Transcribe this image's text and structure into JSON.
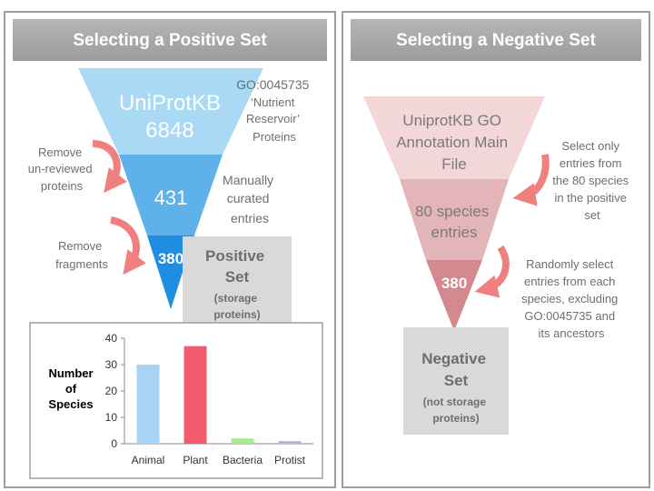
{
  "left_panel": {
    "header": "Selecting a Positive Set",
    "funnel": {
      "level1": [
        "UniProtKB",
        "6848"
      ],
      "level2": "431",
      "level3": "380"
    },
    "annotations": {
      "go_term": [
        "GO:0045735",
        "‘Nutrient",
        "Reservoir’",
        "Proteins"
      ],
      "manual": [
        "Manually",
        "curated",
        "entries"
      ],
      "remove_unreviewed": [
        "Remove",
        "un-reviewed",
        "proteins"
      ],
      "remove_fragments": [
        "Remove",
        "fragments"
      ]
    },
    "set_box": {
      "title": [
        "Positive",
        "Set"
      ],
      "subtitle": [
        "(storage",
        "proteins)"
      ]
    }
  },
  "right_panel": {
    "header": "Selecting a Negative Set",
    "funnel": {
      "level1": [
        "UniprotKB GO",
        "Annotation Main",
        "File"
      ],
      "level2": [
        "80 species",
        "entries"
      ],
      "level3": "380"
    },
    "annotations": {
      "select_species": [
        "Select only",
        "entries from",
        "the 80 species",
        "in the positive",
        "set"
      ],
      "random_select": [
        "Randomly select",
        "entries from each",
        "species, excluding",
        "GO:0045735 and",
        "its ancestors"
      ]
    },
    "set_box": {
      "title": [
        "Negative",
        "Set"
      ],
      "subtitle": [
        "(not storage",
        "proteins)"
      ]
    }
  },
  "colors": {
    "header_gray": "#a6a6a6",
    "positive_funnel": [
      "#a9d9f4",
      "#5fb1ea",
      "#1f8de0"
    ],
    "negative_funnel": [
      "#f2d6d8",
      "#e3b4b8",
      "#d3898e"
    ],
    "arrow": "#f08080",
    "set_box": "#d9d9d9"
  },
  "chart_data": {
    "type": "bar",
    "categories": [
      "Animal",
      "Plant",
      "Bacteria",
      "Protist"
    ],
    "values": [
      30,
      37,
      2,
      1
    ],
    "colors": [
      "#a9d3f5",
      "#f15b6c",
      "#a6ed8e",
      "#c6a6f0"
    ],
    "ylabel": [
      "Number",
      "of",
      "Species"
    ],
    "ylim": [
      0,
      40
    ],
    "yticks": [
      0,
      10,
      20,
      30,
      40
    ],
    "grid": false,
    "legend": "none"
  }
}
